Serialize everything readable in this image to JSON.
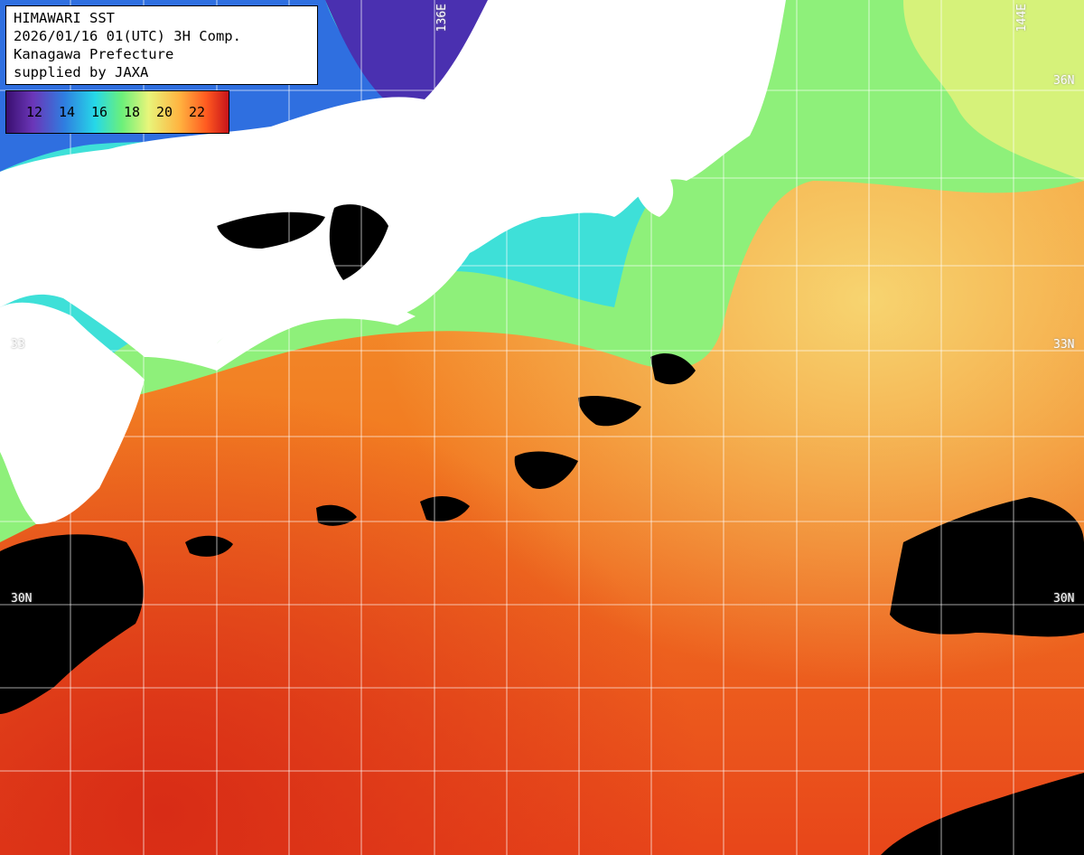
{
  "header": {
    "line1": "HIMAWARI SST",
    "line2": "2026/01/16 01(UTC) 3H Comp.",
    "line3": "Kanagawa Prefecture",
    "line4": "supplied by JAXA"
  },
  "legend": {
    "labels": [
      "12",
      "14",
      "16",
      "18",
      "20",
      "22"
    ],
    "colors": [
      "#3a0f70",
      "#6b36b8",
      "#2f7de0",
      "#26d8e8",
      "#6bf07a",
      "#e8f57a",
      "#ffb340",
      "#ff5a20",
      "#c8141a"
    ]
  },
  "grid_labels": {
    "lon_136": "136E",
    "lon_144": "144E",
    "lat_36_right": "36N",
    "lat_33_left": "33",
    "lat_33_right": "33N",
    "lat_30_left": "30N",
    "lat_30_right": "30N"
  },
  "colors": {
    "land": "#ffffff",
    "no_data": "#000000",
    "grid": "#ffffff"
  }
}
